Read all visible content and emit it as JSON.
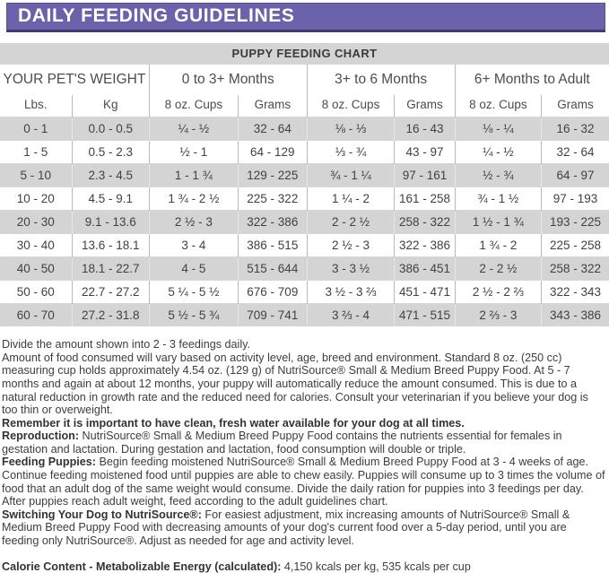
{
  "banner": {
    "title": "DAILY FEEDING GUIDELINES"
  },
  "table": {
    "title": "PUPPY FEEDING CHART",
    "group_headers": [
      "YOUR PET'S WEIGHT",
      "0 to 3+ Months",
      "3+ to 6 Months",
      "6+ Months to Adult"
    ],
    "column_headers": [
      "Lbs.",
      "Kg",
      "8 oz. Cups",
      "Grams",
      "8 oz. Cups",
      "Grams",
      "8 oz. Cups",
      "Grams"
    ],
    "rows": [
      [
        "0 - 1",
        "0.0 - 0.5",
        "¼ - ½",
        "32 - 64",
        "⅛ - ⅓",
        "16 - 43",
        "⅛ - ¼",
        "16 - 32"
      ],
      [
        "1 - 5",
        "0.5 - 2.3",
        "½ - 1",
        "64 - 129",
        "⅓ - ¾",
        "43 - 97",
        "¼ - ½",
        "32 - 64"
      ],
      [
        "5 - 10",
        "2.3 - 4.5",
        "1 - 1 ¾",
        "129 - 225",
        "¾ - 1 ¼",
        "97 - 161",
        "½ - ¾",
        "64 - 97"
      ],
      [
        "10 - 20",
        "4.5 - 9.1",
        "1 ¾ - 2 ½",
        "225 - 322",
        "1 ¼ - 2",
        "161 - 258",
        "¾ - 1 ½",
        "97 - 193"
      ],
      [
        "20 - 30",
        "9.1 - 13.6",
        "2 ½ - 3",
        "322 - 386",
        "2 - 2 ½",
        "258 - 322",
        "1 ½ - 1 ¾",
        "193 - 225"
      ],
      [
        "30 - 40",
        "13.6 - 18.1",
        "3 - 4",
        "386 - 515",
        "2 ½ - 3",
        "322 - 386",
        "1 ¾ - 2",
        "225 - 258"
      ],
      [
        "40 - 50",
        "18.1 - 22.7",
        "4 - 5",
        "515 - 644",
        "3 - 3 ½",
        "386 - 451",
        "2 - 2 ½",
        "258 - 322"
      ],
      [
        "50 - 60",
        "22.7 - 27.2",
        "5 ¼ - 5 ½",
        "676 - 709",
        "3 ½ - 3 ⅔",
        "451 - 471",
        "2 ½ - 2 ⅔",
        "322 - 343"
      ],
      [
        "60 - 70",
        "27.2 - 31.8",
        "5 ½ - 5 ¾",
        "709 - 741",
        "3 ⅔ - 4",
        "471 - 515",
        "2 ⅔ - 3",
        "343 - 386"
      ]
    ]
  },
  "notes": [
    {
      "label": "",
      "text": "Divide the amount shown into 2 - 3 feedings daily."
    },
    {
      "label": "",
      "text": "Amount of food consumed will vary based on activity level, age, breed and environment. Standard 8 oz. (250 cc) measuring cup holds approximately 4.54 oz. (129 g) of NutriSource® Small & Medium Breed Puppy Food. At 5 - 7 months and again at about 12 months, your puppy will automatically reduce the amount consumed. This is due to a natural reduction in growth rate and the reduced need for calories. Consult your veterinarian if you believe your dog is too thin or overweight."
    },
    {
      "label": "Remember it is important to have clean, fresh water available for your dog at all times.",
      "text": ""
    },
    {
      "label": "Reproduction:",
      "text": " NutriSource® Small & Medium Breed Puppy Food contains the nutrients essential for females in gestation and lactation. During gestation and lactation, food consumption will double or triple."
    },
    {
      "label": "Feeding Puppies:",
      "text": " Begin feeding moistened NutriSource® Small & Medium Breed Puppy Food at 3 - 4 weeks of age. Continue feeding moistened food until puppies are able to chew easily. Puppies will consume up to 3 times the volume of food that an adult dog of the same weight would consume. Divide the daily ration for puppies into 3 feedings per day. After puppies reach adult weight, feed according to the adult guidelines chart."
    },
    {
      "label": "Switching Your Dog to NutriSource®:",
      "text": " For easiest adjustment, mix increasing amounts of NutriSource® Small & Medium Breed Puppy Food with decreasing amounts of your dog's current food over a 5-day period, until you are feeding only NutriSource®. Adjust as needed for age and activity level."
    },
    {
      "label": "Calorie Content - Metabolizable Energy (calculated):",
      "text": " 4,150 kcals per kg, 535 kcals per cup",
      "calorie": true
    }
  ],
  "colors": {
    "banner_bg": "#6a62aa",
    "banner_border": "#403a6d",
    "banner_text": "#ffffff",
    "row_alt_bg": "#d4d4d4",
    "cell_border": "#b9b9b9",
    "text": "#3d3d3d"
  }
}
